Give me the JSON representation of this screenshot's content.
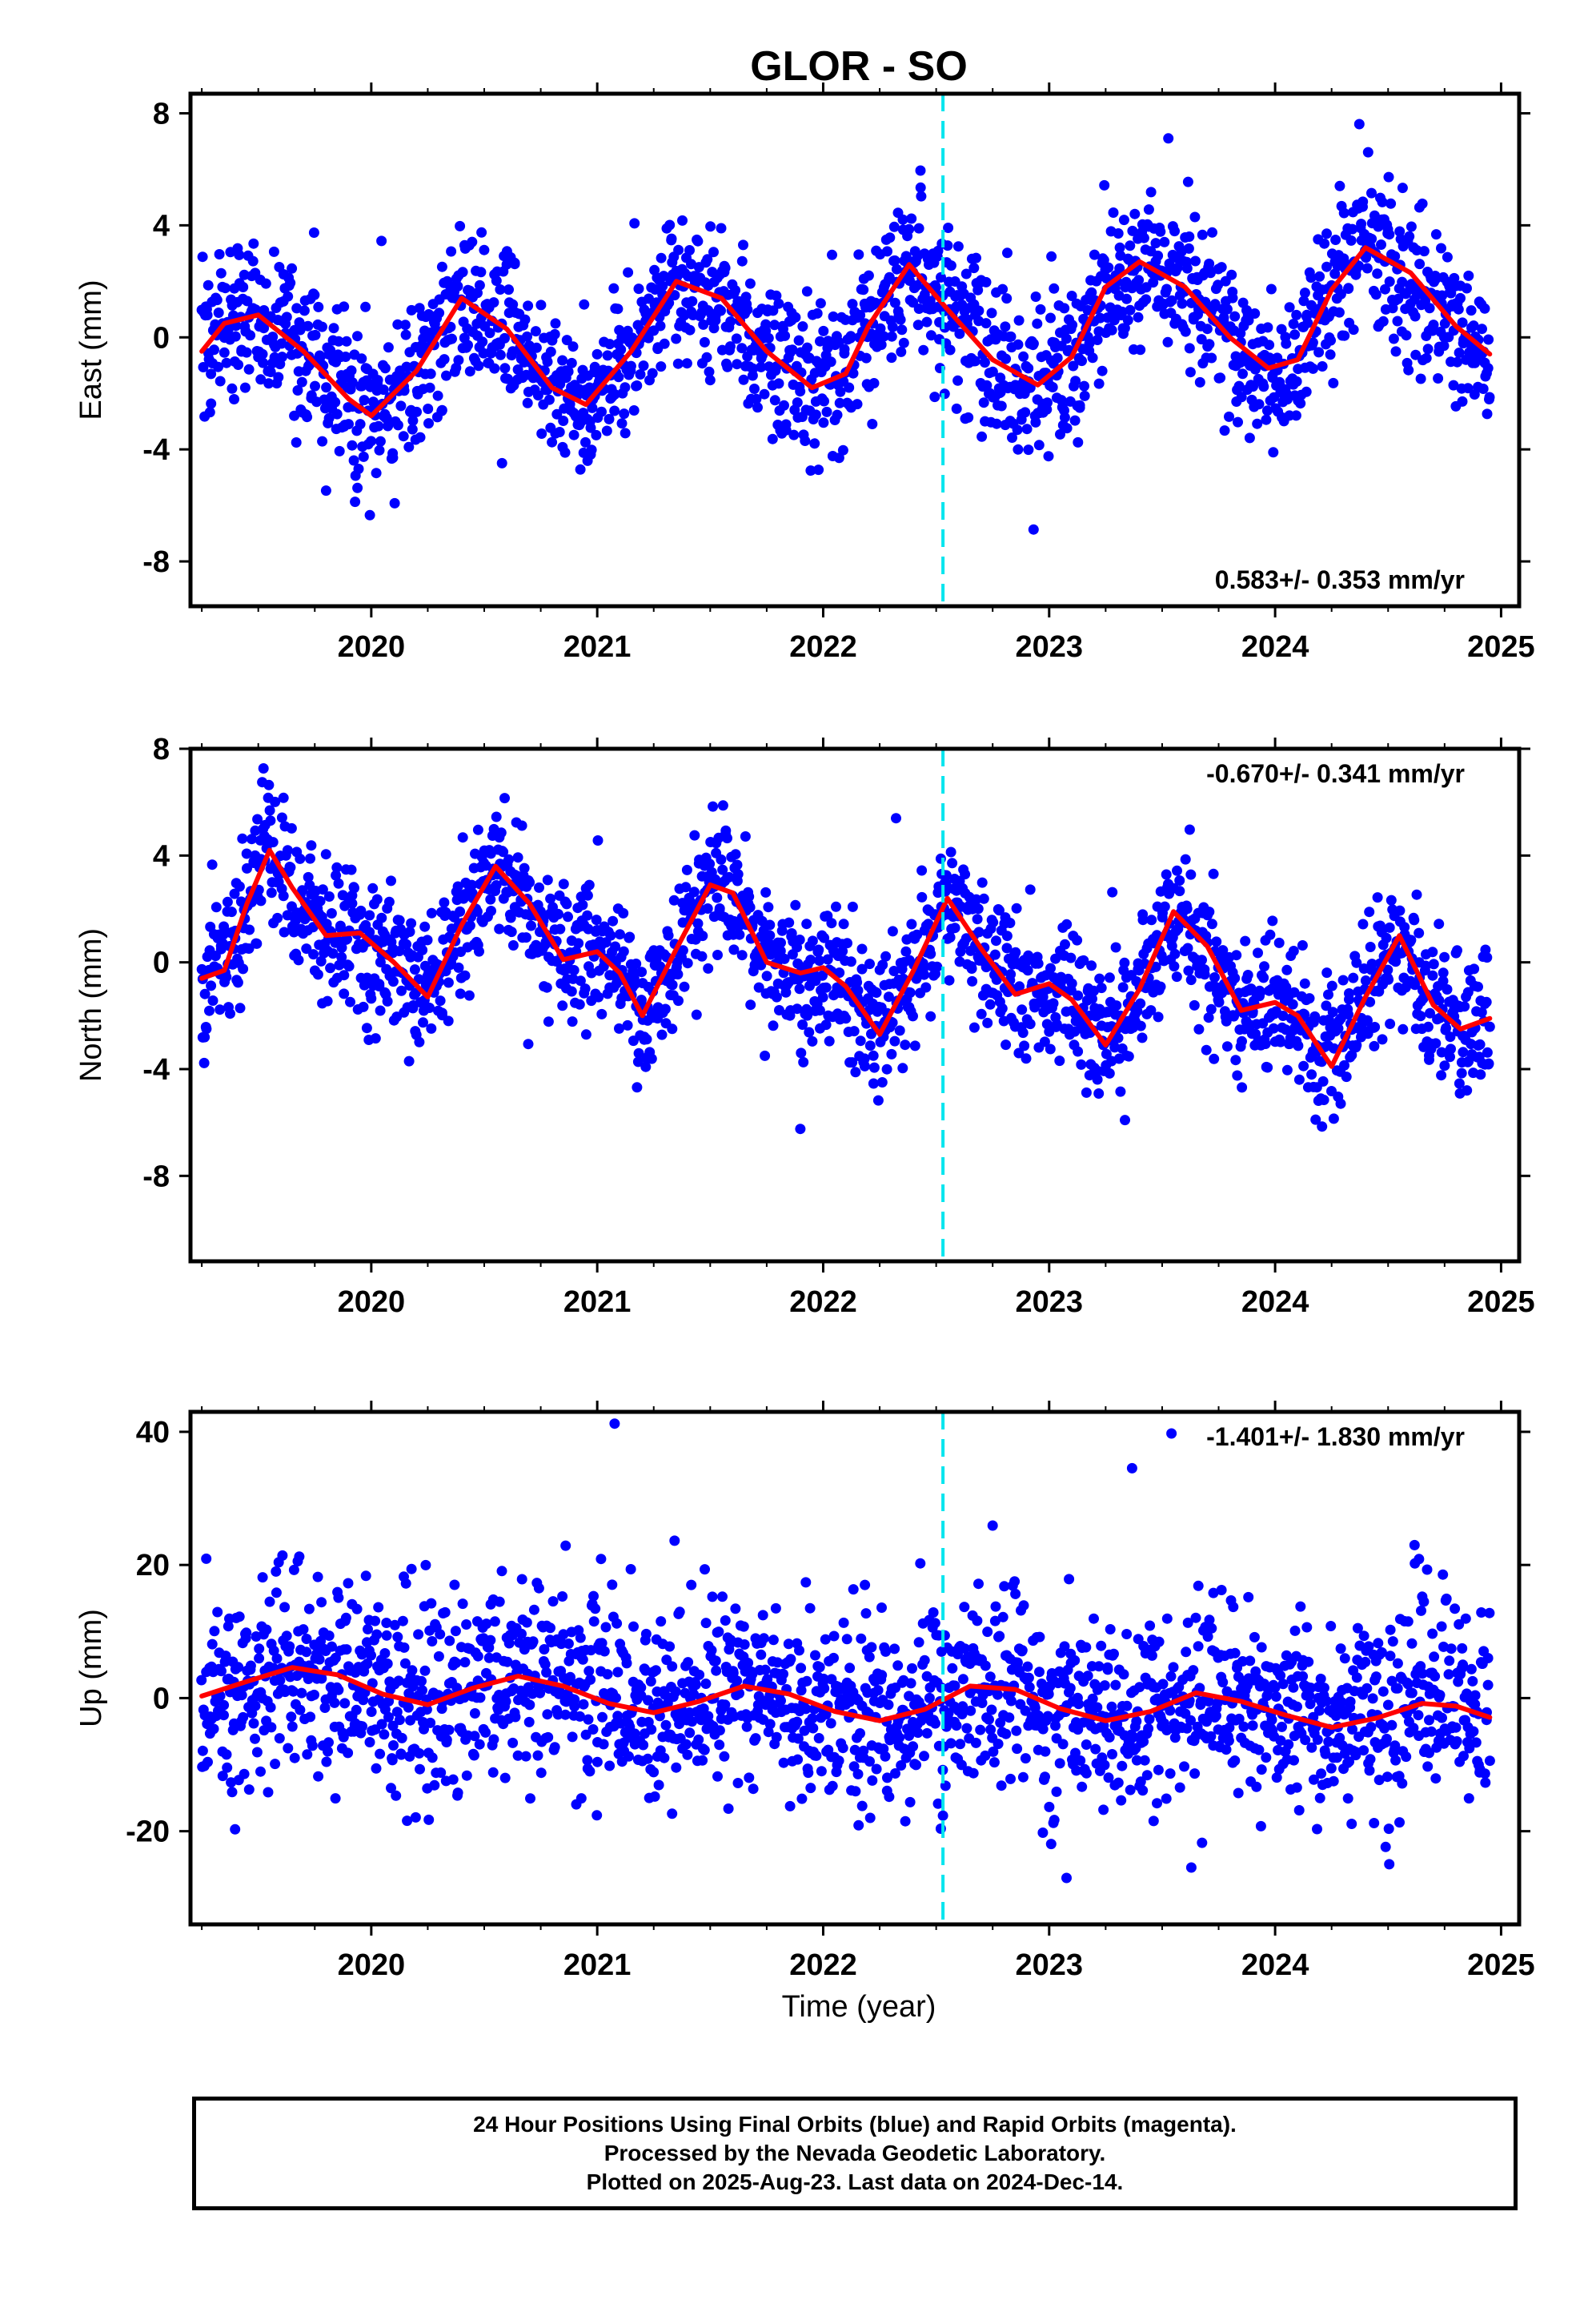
{
  "title": "GLOR - SO",
  "colors": {
    "points": "#0000ff",
    "fit": "#ff0000",
    "event_line": "#00e5ee",
    "axes": "#000000",
    "background": "#ffffff"
  },
  "xlabel": "Time (year)",
  "footer": {
    "line1": "24 Hour Positions Using Final Orbits (blue) and Rapid Orbits (magenta).",
    "line2": "Processed by the Nevada Geodetic Laboratory.",
    "line3": "Plotted on 2025-Aug-23. Last data on 2024-Dec-14."
  },
  "chart_data": [
    {
      "type": "scatter",
      "component": "east",
      "ylabel": "East (mm)",
      "rate_label": "0.583+/- 0.353 mm/yr",
      "rate_position": "bottom-right",
      "xlim": [
        2019.2,
        2025.08
      ],
      "ylim": [
        -9.6,
        8.7
      ],
      "xticks": [
        2020,
        2021,
        2022,
        2023,
        2024,
        2025
      ],
      "yticks": [
        -8,
        -4,
        0,
        4,
        8
      ],
      "event_line_x": 2022.53,
      "points_series": {
        "name": "Final Orbits",
        "color": "#0000ff"
      },
      "data_span": [
        2019.25,
        2024.95
      ],
      "fit_curve": {
        "name": "Trend + seasonal fit",
        "color": "#ff0000",
        "x": [
          2019.25,
          2019.35,
          2019.5,
          2019.7,
          2019.9,
          2020.0,
          2020.2,
          2020.4,
          2020.6,
          2020.8,
          2020.95,
          2021.15,
          2021.35,
          2021.55,
          2021.75,
          2021.95,
          2022.1,
          2022.2,
          2022.38,
          2022.55,
          2022.75,
          2022.95,
          2023.1,
          2023.25,
          2023.4,
          2023.6,
          2023.8,
          2023.97,
          2024.1,
          2024.25,
          2024.4,
          2024.6,
          2024.8,
          2024.95
        ],
        "y": [
          -0.5,
          0.5,
          0.8,
          -0.5,
          -2.2,
          -2.8,
          -1.2,
          1.4,
          0.3,
          -1.8,
          -2.4,
          -0.5,
          2.0,
          1.4,
          -0.5,
          -1.8,
          -1.3,
          0.4,
          2.6,
          1.0,
          -0.8,
          -1.7,
          -0.7,
          1.8,
          2.7,
          1.8,
          0.0,
          -1.1,
          -0.8,
          1.7,
          3.2,
          2.3,
          0.4,
          -0.6
        ]
      }
    },
    {
      "type": "scatter",
      "component": "north",
      "ylabel": "North (mm)",
      "rate_label": "-0.670+/- 0.341 mm/yr",
      "rate_position": "top-right",
      "xlim": [
        2019.2,
        2025.08
      ],
      "ylim": [
        -11.2,
        8.0
      ],
      "xticks": [
        2020,
        2021,
        2022,
        2023,
        2024,
        2025
      ],
      "yticks": [
        -8,
        -4,
        0,
        4,
        8
      ],
      "event_line_x": 2022.53,
      "points_series": {
        "name": "Final Orbits",
        "color": "#0000ff"
      },
      "data_span": [
        2019.25,
        2024.95
      ],
      "fit_curve": {
        "name": "Trend + seasonal fit",
        "color": "#ff0000",
        "x": [
          2019.25,
          2019.35,
          2019.45,
          2019.55,
          2019.65,
          2019.8,
          2019.95,
          2020.1,
          2020.25,
          2020.4,
          2020.55,
          2020.7,
          2020.85,
          2021.0,
          2021.1,
          2021.2,
          2021.35,
          2021.5,
          2021.6,
          2021.75,
          2021.9,
          2022.0,
          2022.1,
          2022.25,
          2022.4,
          2022.55,
          2022.7,
          2022.85,
          2023.0,
          2023.1,
          2023.25,
          2023.4,
          2023.55,
          2023.7,
          2023.85,
          2024.0,
          2024.1,
          2024.25,
          2024.4,
          2024.55,
          2024.7,
          2024.82,
          2024.95
        ],
        "y": [
          -0.6,
          -0.3,
          2.2,
          4.2,
          2.8,
          1.0,
          1.1,
          0.0,
          -1.3,
          1.4,
          3.6,
          2.2,
          0.1,
          0.4,
          -0.4,
          -2.0,
          0.5,
          2.9,
          2.6,
          0.0,
          -0.4,
          -0.2,
          -0.9,
          -2.7,
          -0.3,
          2.4,
          0.5,
          -1.2,
          -0.8,
          -1.4,
          -3.1,
          -1.0,
          1.9,
          0.6,
          -1.8,
          -1.5,
          -2.0,
          -3.9,
          -1.3,
          1.0,
          -1.6,
          -2.5,
          -2.1
        ]
      }
    },
    {
      "type": "scatter",
      "component": "up",
      "ylabel": "Up (mm)",
      "rate_label": "-1.401+/- 1.830 mm/yr",
      "rate_position": "top-right",
      "xlim": [
        2019.2,
        2025.08
      ],
      "ylim": [
        -34.0,
        43.0
      ],
      "xticks": [
        2020,
        2021,
        2022,
        2023,
        2024,
        2025
      ],
      "yticks": [
        -20,
        0,
        20,
        40
      ],
      "event_line_x": 2022.53,
      "points_series": {
        "name": "Final Orbits",
        "color": "#0000ff"
      },
      "data_span": [
        2019.25,
        2024.95
      ],
      "fit_curve": {
        "name": "Trend + seasonal fit",
        "color": "#ff0000",
        "x": [
          2019.25,
          2019.45,
          2019.65,
          2019.85,
          2020.05,
          2020.25,
          2020.45,
          2020.65,
          2020.85,
          2021.05,
          2021.25,
          2021.45,
          2021.65,
          2021.85,
          2022.05,
          2022.25,
          2022.45,
          2022.65,
          2022.85,
          2023.05,
          2023.25,
          2023.45,
          2023.65,
          2023.85,
          2024.05,
          2024.25,
          2024.45,
          2024.65,
          2024.8,
          2024.95
        ],
        "y": [
          0.3,
          2.5,
          4.6,
          3.5,
          0.6,
          -1.0,
          1.5,
          3.3,
          1.8,
          -0.8,
          -2.2,
          -0.5,
          1.8,
          0.6,
          -2.0,
          -3.4,
          -1.7,
          1.8,
          1.3,
          -1.6,
          -3.4,
          -2.0,
          0.8,
          -0.5,
          -2.6,
          -4.4,
          -3.0,
          -0.8,
          -1.2,
          -2.9
        ]
      }
    }
  ]
}
